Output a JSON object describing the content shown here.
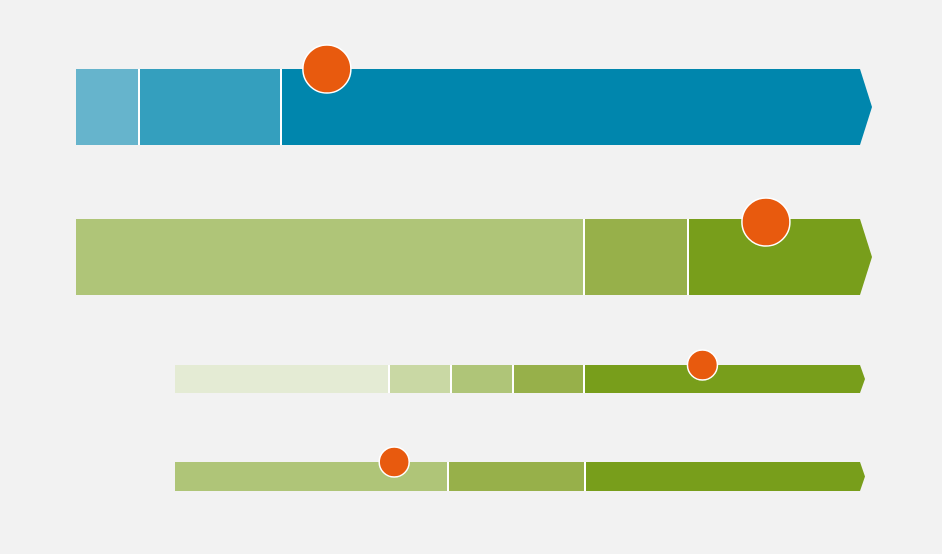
{
  "background_color": "#f2f2f2",
  "marker_color": "#e85a0e",
  "bars": [
    {
      "id": "bar-1",
      "segments": [
        {
          "color": "#66b4cc"
        },
        {
          "color": "#349fbe"
        },
        {
          "color": "#0086ad"
        }
      ],
      "marker": {
        "position_fraction": 0.32
      }
    },
    {
      "id": "bar-2",
      "segments": [
        {
          "color": "#afc578"
        },
        {
          "color": "#97b04a"
        },
        {
          "color": "#789e1b"
        }
      ],
      "marker": {
        "position_fraction": 0.88
      }
    },
    {
      "id": "bar-3",
      "segments": [
        {
          "color": "#e4ebd4"
        },
        {
          "color": "#c9d8a4"
        },
        {
          "color": "#afc578"
        },
        {
          "color": "#97b04a"
        },
        {
          "color": "#789e1b"
        }
      ],
      "marker": {
        "position_fraction": 0.77
      }
    },
    {
      "id": "bar-4",
      "segments": [
        {
          "color": "#afc578"
        },
        {
          "color": "#97b04a"
        },
        {
          "color": "#789e1b"
        }
      ],
      "marker": {
        "position_fraction": 0.32
      }
    }
  ]
}
